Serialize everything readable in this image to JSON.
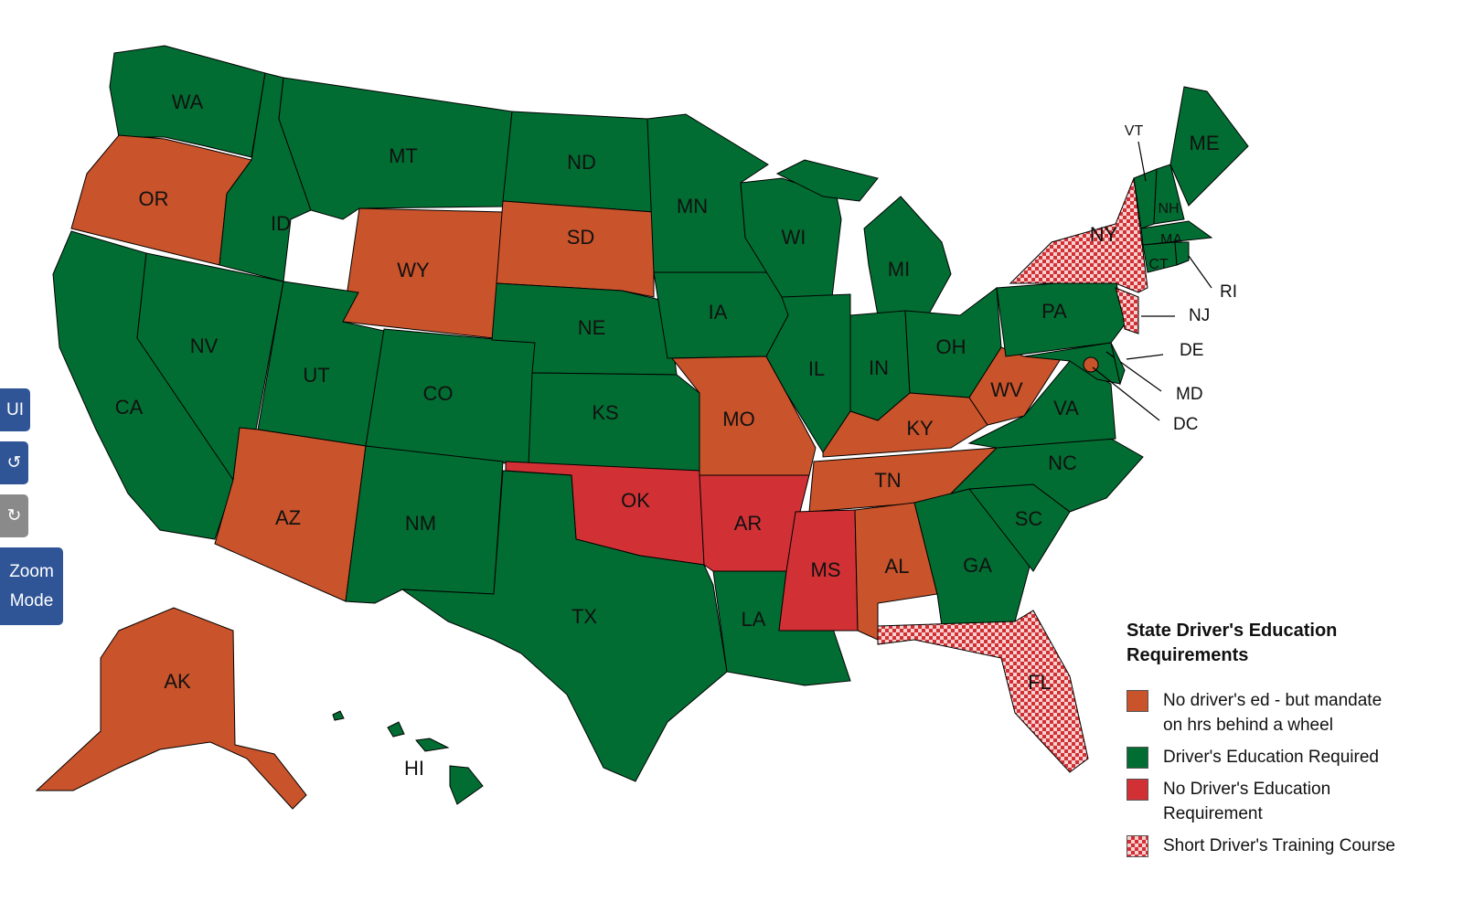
{
  "controls": {
    "ui": "UI",
    "zoom": "Zoom Mode"
  },
  "legend": {
    "title": "State Driver's Education Requirements",
    "items": [
      {
        "label": "No driver's ed - but mandate on hrs behind a wheel",
        "color": "#c9532b"
      },
      {
        "label": "Driver's Education Required",
        "color": "#026d32"
      },
      {
        "label": "No Driver's Education Requirement",
        "color": "#d13135"
      },
      {
        "label": "Short Driver's Training Course",
        "color": "pattern"
      }
    ]
  },
  "states": [
    {
      "label": "WA",
      "category": 1
    },
    {
      "label": "OR",
      "category": 0
    },
    {
      "label": "CA",
      "category": 1
    },
    {
      "label": "NV",
      "category": 1
    },
    {
      "label": "ID",
      "category": 1
    },
    {
      "label": "MT",
      "category": 1
    },
    {
      "label": "WY",
      "category": 0
    },
    {
      "label": "UT",
      "category": 1
    },
    {
      "label": "CO",
      "category": 1
    },
    {
      "label": "AZ",
      "category": 0
    },
    {
      "label": "NM",
      "category": 1
    },
    {
      "label": "ND",
      "category": 1
    },
    {
      "label": "SD",
      "category": 0
    },
    {
      "label": "NE",
      "category": 1
    },
    {
      "label": "KS",
      "category": 1
    },
    {
      "label": "OK",
      "category": 2
    },
    {
      "label": "TX",
      "category": 1
    },
    {
      "label": "MN",
      "category": 1
    },
    {
      "label": "IA",
      "category": 1
    },
    {
      "label": "MO",
      "category": 0
    },
    {
      "label": "AR",
      "category": 2
    },
    {
      "label": "LA",
      "category": 1
    },
    {
      "label": "WI",
      "category": 1
    },
    {
      "label": "IL",
      "category": 1
    },
    {
      "label": "MI",
      "category": 1
    },
    {
      "label": "IN",
      "category": 1
    },
    {
      "label": "OH",
      "category": 1
    },
    {
      "label": "KY",
      "category": 0
    },
    {
      "label": "TN",
      "category": 0
    },
    {
      "label": "MS",
      "category": 2
    },
    {
      "label": "AL",
      "category": 0
    },
    {
      "label": "GA",
      "category": 1
    },
    {
      "label": "FL",
      "category": 3
    },
    {
      "label": "SC",
      "category": 1
    },
    {
      "label": "NC",
      "category": 1
    },
    {
      "label": "VA",
      "category": 1
    },
    {
      "label": "WV",
      "category": 0
    },
    {
      "label": "PA",
      "category": 1
    },
    {
      "label": "MD",
      "category": 1
    },
    {
      "label": "DE",
      "category": 1
    },
    {
      "label": "NJ",
      "category": 3
    },
    {
      "label": "NY",
      "category": 3
    },
    {
      "label": "VT",
      "category": 1
    },
    {
      "label": "NH",
      "category": 1
    },
    {
      "label": "ME",
      "category": 1
    },
    {
      "label": "MA",
      "category": 1
    },
    {
      "label": "CT",
      "category": 1
    },
    {
      "label": "RI",
      "category": 1
    },
    {
      "label": "AK",
      "category": 0
    },
    {
      "label": "HI",
      "category": 1
    },
    {
      "label": "DC",
      "category": 0
    }
  ]
}
